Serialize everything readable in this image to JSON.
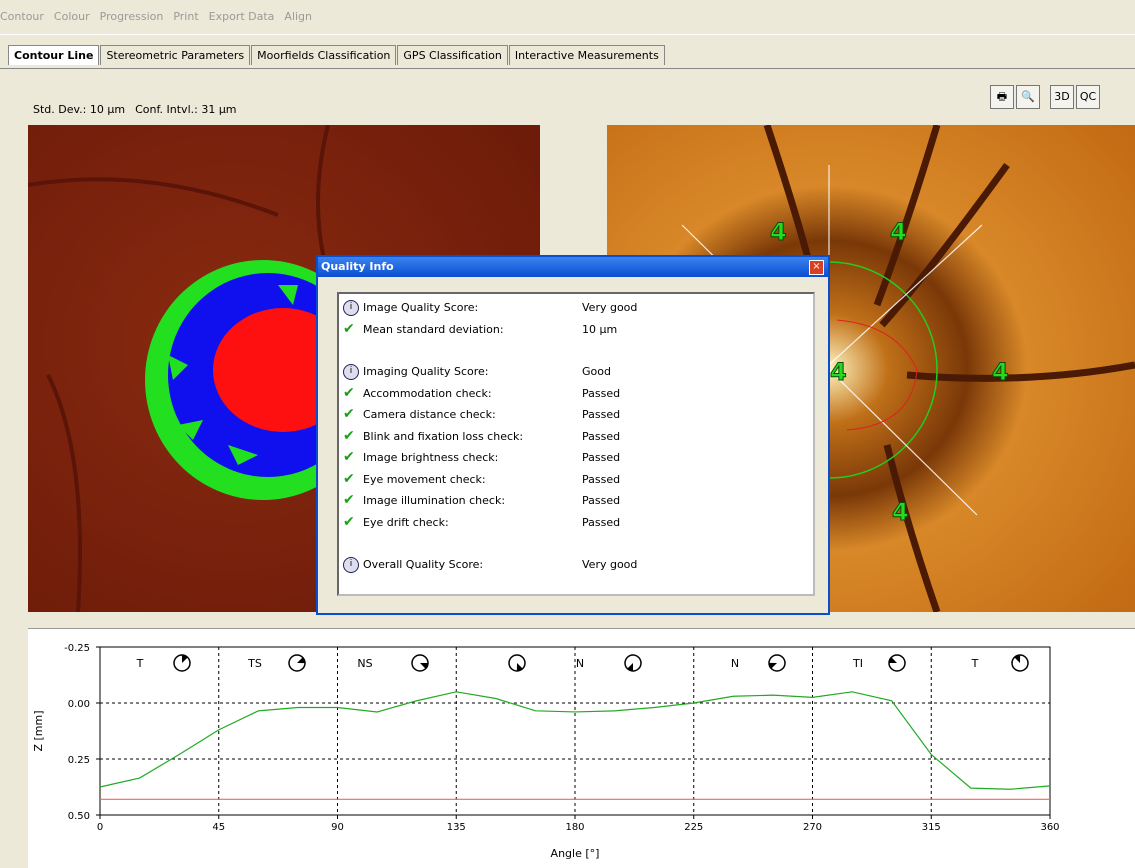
{
  "menu": [
    "Contour",
    "Colour",
    "Progression",
    "Print",
    "Export Data",
    "Align"
  ],
  "tabs": [
    "Contour Line",
    "Stereometric Parameters",
    "Moorfields Classification",
    "GPS Classification",
    "Interactive Measurements"
  ],
  "stats": [
    "Std. Dev.: 10 µm",
    "Conf. Intvl.: 31 µm"
  ],
  "buttons": [
    "3D",
    "QC"
  ],
  "image_labels": [
    "4",
    "4",
    "4",
    "4",
    "4"
  ],
  "dialog": {
    "title": "Quality Info",
    "groups": [
      [
        {
          "label": "Image Quality Score:",
          "value": "Very good"
        },
        {
          "label": "Mean standard deviation:",
          "value": "10 µm"
        }
      ],
      [
        {
          "label": "Imaging Quality Score:",
          "value": "Good"
        },
        {
          "label": "Accommodation check:",
          "value": "Passed"
        },
        {
          "label": "Camera distance check:",
          "value": "Passed"
        },
        {
          "label": "Blink and fixation loss check:",
          "value": "Passed"
        },
        {
          "label": "Image brightness check:",
          "value": "Passed"
        },
        {
          "label": "Eye movement check:",
          "value": "Passed"
        },
        {
          "label": "Image illumination check:",
          "value": "Passed"
        },
        {
          "label": "Eye drift check:",
          "value": "Passed"
        }
      ],
      [
        {
          "label": "Overall Quality Score:",
          "value": "Very good"
        }
      ]
    ]
  },
  "chart_data": {
    "type": "line",
    "xlabel": "Angle [°]",
    "ylabel": "Z [mm]",
    "sector_labels": [
      "T",
      "TS",
      "NS",
      "N",
      "N",
      "TI",
      "T"
    ],
    "x": [
      0,
      15,
      30,
      45,
      60,
      75,
      90,
      105,
      120,
      135,
      150,
      165,
      180,
      195,
      210,
      225,
      240,
      255,
      270,
      285,
      300,
      315,
      330,
      345,
      360
    ],
    "series": [
      {
        "color": "#22aa22",
        "values": [
          0.375,
          0.335,
          0.23,
          0.12,
          0.035,
          0.02,
          0.02,
          0.04,
          -0.01,
          -0.05,
          -0.02,
          0.035,
          0.04,
          0.035,
          0.02,
          0.0,
          -0.03,
          -0.035,
          -0.025,
          -0.05,
          -0.01,
          0.23,
          0.38,
          0.385,
          0.37
        ]
      },
      {
        "color": "#ff6060",
        "values": [
          0.43,
          0.43,
          0.43,
          0.43,
          0.43,
          0.43,
          0.43,
          0.43,
          0.43,
          0.43,
          0.43,
          0.43,
          0.43,
          0.43,
          0.43,
          0.43,
          0.43,
          0.43,
          0.43,
          0.43,
          0.43,
          0.43,
          0.43,
          0.43,
          0.43
        ]
      }
    ],
    "xlim": [
      0,
      360
    ],
    "xticks": [
      0,
      45,
      90,
      135,
      180,
      225,
      270,
      315,
      360
    ],
    "ylim": [
      -0.25,
      0.5
    ],
    "y_inverted": true,
    "yticks": [
      -0.25,
      {
        "value": 0,
        "label": "0.00"
      },
      0.25,
      {
        "value": 0.5,
        "label": "0.50"
      }
    ],
    "grid": true
  }
}
